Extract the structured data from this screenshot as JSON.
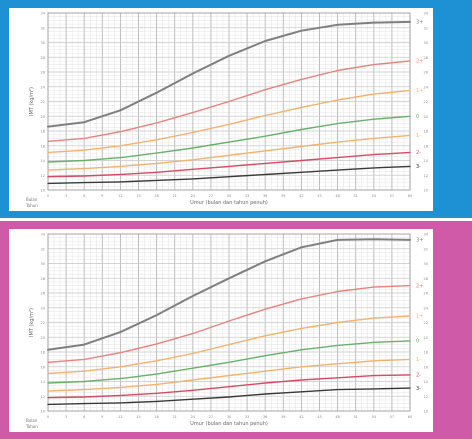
{
  "panels": [
    {
      "id": "boys",
      "frame_color": "#1e90d4",
      "ylabel": "IMT (kg/m²)",
      "xlabel": "Umur (bulan dan tahun penuh)",
      "corner_label": [
        "Bulan",
        "Tahun"
      ],
      "y_ticks": [
        "34",
        "32",
        "30",
        "28",
        "26",
        "24",
        "22",
        "20",
        "18",
        "16",
        "14",
        "12",
        "10"
      ],
      "x_ticks": [
        "0",
        "3",
        "6",
        "9",
        "12",
        "15",
        "18",
        "21",
        "24",
        "27",
        "30",
        "33",
        "36",
        "39",
        "42",
        "45",
        "48",
        "51",
        "54",
        "57",
        "60"
      ]
    },
    {
      "id": "girls",
      "frame_color": "#cf5aa8",
      "ylabel": "IMT (kg/m²)",
      "xlabel": "Umur (bulan dan tahun penuh)",
      "corner_label": [
        "Bulan",
        "Tahun"
      ],
      "y_ticks": [
        "34",
        "32",
        "30",
        "28",
        "26",
        "24",
        "22",
        "20",
        "18",
        "16",
        "14",
        "12",
        "10"
      ],
      "x_ticks": [
        "0",
        "3",
        "6",
        "9",
        "12",
        "15",
        "18",
        "21",
        "24",
        "27",
        "30",
        "33",
        "36",
        "39",
        "42",
        "45",
        "48",
        "51",
        "54",
        "57",
        "60"
      ]
    }
  ],
  "chart_data": [
    {
      "type": "line",
      "xlabel": "Umur (bulan dan tahun penuh)",
      "ylabel": "IMT (kg/m²)",
      "xlim": [
        0,
        60
      ],
      "ylim": [
        10,
        34
      ],
      "grid": true,
      "x": [
        0,
        6,
        12,
        18,
        24,
        30,
        36,
        42,
        48,
        54,
        60
      ],
      "series": [
        {
          "name": "3+",
          "color": "#7f7f7f",
          "values": [
            18.6,
            19.2,
            20.8,
            23.2,
            25.8,
            28.2,
            30.2,
            31.6,
            32.4,
            32.7,
            32.8
          ]
        },
        {
          "name": "2+",
          "color": "#e8827f",
          "values": [
            16.6,
            17.0,
            17.9,
            19.1,
            20.5,
            22.0,
            23.6,
            25.0,
            26.2,
            27.0,
            27.5
          ]
        },
        {
          "name": "1+",
          "color": "#f2b26e",
          "values": [
            15.1,
            15.4,
            16.0,
            16.8,
            17.8,
            18.9,
            20.1,
            21.2,
            22.2,
            23.0,
            23.5
          ]
        },
        {
          "name": "0",
          "color": "#69b06b",
          "values": [
            13.8,
            14.0,
            14.4,
            15.0,
            15.7,
            16.5,
            17.3,
            18.2,
            19.0,
            19.6,
            20.0
          ]
        },
        {
          "name": "1-",
          "color": "#f2b26e",
          "values": [
            12.7,
            12.9,
            13.2,
            13.6,
            14.1,
            14.7,
            15.3,
            15.9,
            16.5,
            17.0,
            17.4
          ]
        },
        {
          "name": "2-",
          "color": "#d84a63",
          "values": [
            11.8,
            11.9,
            12.1,
            12.4,
            12.8,
            13.2,
            13.6,
            14.0,
            14.4,
            14.8,
            15.1
          ]
        },
        {
          "name": "3-",
          "color": "#3a3a3a",
          "values": [
            10.9,
            11.0,
            11.1,
            11.3,
            11.5,
            11.8,
            12.1,
            12.4,
            12.7,
            13.0,
            13.2
          ]
        }
      ]
    },
    {
      "type": "line",
      "xlabel": "Umur (bulan dan tahun penuh)",
      "ylabel": "IMT (kg/m²)",
      "xlim": [
        0,
        60
      ],
      "ylim": [
        10,
        34
      ],
      "grid": true,
      "x": [
        0,
        6,
        12,
        18,
        24,
        30,
        36,
        42,
        48,
        54,
        60
      ],
      "series": [
        {
          "name": "3+",
          "color": "#7f7f7f",
          "values": [
            18.3,
            19.0,
            20.7,
            23.0,
            25.6,
            28.0,
            30.3,
            32.2,
            33.2,
            33.3,
            33.2
          ]
        },
        {
          "name": "2+",
          "color": "#e8827f",
          "values": [
            16.6,
            17.0,
            17.9,
            19.1,
            20.5,
            22.2,
            23.8,
            25.2,
            26.2,
            26.8,
            27.0
          ]
        },
        {
          "name": "1+",
          "color": "#f2b26e",
          "values": [
            15.1,
            15.4,
            16.0,
            16.8,
            17.8,
            19.0,
            20.2,
            21.2,
            22.0,
            22.6,
            22.9
          ]
        },
        {
          "name": "0",
          "color": "#69b06b",
          "values": [
            13.8,
            14.0,
            14.4,
            15.0,
            15.8,
            16.6,
            17.5,
            18.3,
            18.9,
            19.3,
            19.5
          ]
        },
        {
          "name": "1-",
          "color": "#f2b26e",
          "values": [
            12.7,
            12.9,
            13.2,
            13.6,
            14.2,
            14.8,
            15.4,
            16.0,
            16.4,
            16.8,
            17.0
          ]
        },
        {
          "name": "2-",
          "color": "#d84a63",
          "values": [
            11.8,
            11.9,
            12.1,
            12.4,
            12.8,
            13.3,
            13.8,
            14.2,
            14.5,
            14.8,
            14.9
          ]
        },
        {
          "name": "3-",
          "color": "#3a3a3a",
          "values": [
            10.9,
            11.0,
            11.1,
            11.3,
            11.6,
            11.9,
            12.3,
            12.6,
            12.9,
            13.0,
            13.1
          ]
        }
      ]
    }
  ]
}
